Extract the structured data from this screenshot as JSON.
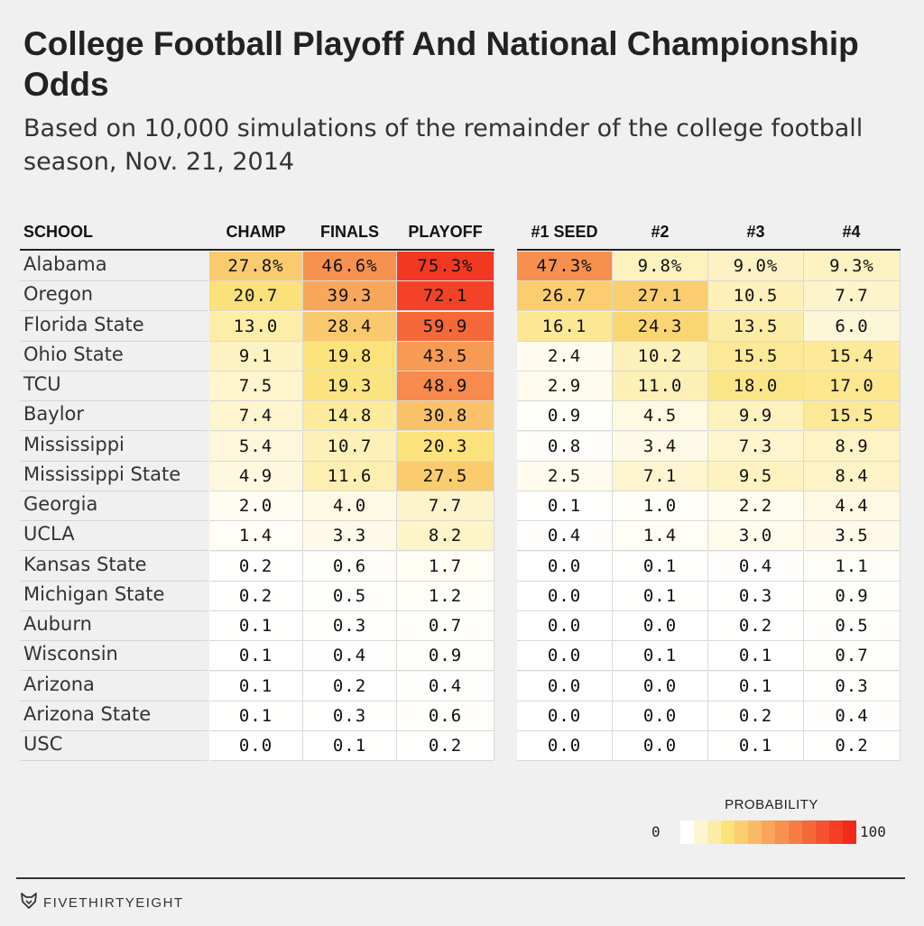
{
  "title": "College Football Playoff And National Championship Odds",
  "subtitle": "Based on 10,000 simulations of the remainder of the college football season, Nov. 21, 2014",
  "columns": [
    "SCHOOL",
    "CHAMP",
    "FINALS",
    "PLAYOFF",
    "#1 SEED",
    "#2",
    "#3",
    "#4"
  ],
  "legend": {
    "title": "PROBABILITY",
    "min_label": "0",
    "max_label": "100"
  },
  "footer": {
    "brand": "FIVETHIRTYEIGHT"
  },
  "colors": {
    "low": "#ffffff",
    "mid": "#fbe37a",
    "high": "#f22a1a",
    "background": "#f0f0f0"
  },
  "chart_data": {
    "type": "table",
    "columns": [
      "CHAMP",
      "FINALS",
      "PLAYOFF",
      "#1 SEED",
      "#2",
      "#3",
      "#4"
    ],
    "rows": [
      {
        "school": "Alabama",
        "values": [
          "27.8%",
          "46.6%",
          "75.3%",
          "47.3%",
          "9.8%",
          "9.0%",
          "9.3%"
        ]
      },
      {
        "school": "Oregon",
        "values": [
          "20.7",
          "39.3",
          "72.1",
          "26.7",
          "27.1",
          "10.5",
          "7.7"
        ]
      },
      {
        "school": "Florida State",
        "values": [
          "13.0",
          "28.4",
          "59.9",
          "16.1",
          "24.3",
          "13.5",
          "6.0"
        ]
      },
      {
        "school": "Ohio State",
        "values": [
          "9.1",
          "19.8",
          "43.5",
          "2.4",
          "10.2",
          "15.5",
          "15.4"
        ]
      },
      {
        "school": "TCU",
        "values": [
          "7.5",
          "19.3",
          "48.9",
          "2.9",
          "11.0",
          "18.0",
          "17.0"
        ]
      },
      {
        "school": "Baylor",
        "values": [
          "7.4",
          "14.8",
          "30.8",
          "0.9",
          "4.5",
          "9.9",
          "15.5"
        ]
      },
      {
        "school": "Mississippi",
        "values": [
          "5.4",
          "10.7",
          "20.3",
          "0.8",
          "3.4",
          "7.3",
          "8.9"
        ]
      },
      {
        "school": "Mississippi State",
        "values": [
          "4.9",
          "11.6",
          "27.5",
          "2.5",
          "7.1",
          "9.5",
          "8.4"
        ]
      },
      {
        "school": "Georgia",
        "values": [
          "2.0",
          "4.0",
          "7.7",
          "0.1",
          "1.0",
          "2.2",
          "4.4"
        ]
      },
      {
        "school": "UCLA",
        "values": [
          "1.4",
          "3.3",
          "8.2",
          "0.4",
          "1.4",
          "3.0",
          "3.5"
        ]
      },
      {
        "school": "Kansas State",
        "values": [
          "0.2",
          "0.6",
          "1.7",
          "0.0",
          "0.1",
          "0.4",
          "1.1"
        ]
      },
      {
        "school": "Michigan State",
        "values": [
          "0.2",
          "0.5",
          "1.2",
          "0.0",
          "0.1",
          "0.3",
          "0.9"
        ]
      },
      {
        "school": "Auburn",
        "values": [
          "0.1",
          "0.3",
          "0.7",
          "0.0",
          "0.0",
          "0.2",
          "0.5"
        ]
      },
      {
        "school": "Wisconsin",
        "values": [
          "0.1",
          "0.4",
          "0.9",
          "0.0",
          "0.1",
          "0.1",
          "0.7"
        ]
      },
      {
        "school": "Arizona",
        "values": [
          "0.1",
          "0.2",
          "0.4",
          "0.0",
          "0.0",
          "0.1",
          "0.3"
        ]
      },
      {
        "school": "Arizona State",
        "values": [
          "0.1",
          "0.3",
          "0.6",
          "0.0",
          "0.0",
          "0.2",
          "0.4"
        ]
      },
      {
        "school": "USC",
        "values": [
          "0.0",
          "0.1",
          "0.2",
          "0.0",
          "0.0",
          "0.1",
          "0.2"
        ]
      }
    ]
  }
}
